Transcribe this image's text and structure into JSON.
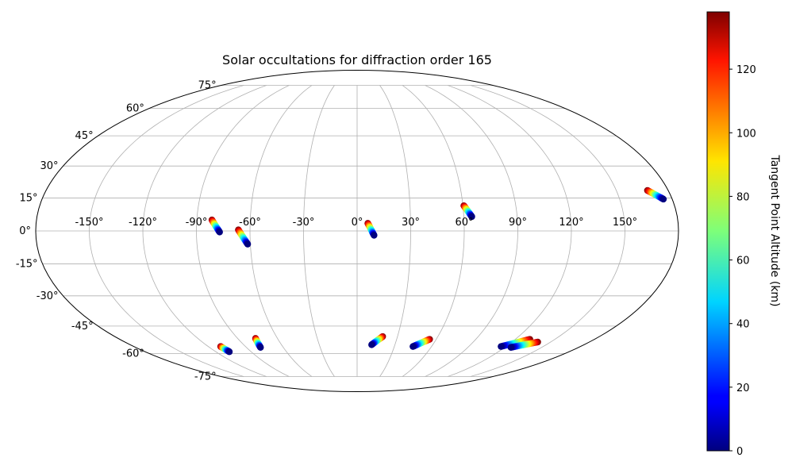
{
  "chart_data": {
    "type": "scatter",
    "projection": "mollweide",
    "title": "Solar occultations for diffraction order 165",
    "grid": true,
    "longitude_ticks": [
      -150,
      -120,
      -90,
      -60,
      -30,
      0,
      30,
      60,
      90,
      120,
      150
    ],
    "longitude_tick_labels": [
      "-150°",
      "-120°",
      "-90°",
      "-60°",
      "-30°",
      "0°",
      "30°",
      "60°",
      "90°",
      "120°",
      "150°"
    ],
    "latitude_ticks": [
      -75,
      -60,
      -45,
      -30,
      -15,
      0,
      15,
      30,
      45,
      60,
      75
    ],
    "latitude_tick_labels": [
      "-75°",
      "-60°",
      "-45°",
      "-30°",
      "-15°",
      "0°",
      "15°",
      "30°",
      "45°",
      "60°",
      "75°"
    ],
    "colormap": "jet",
    "colorbar": {
      "label": "Tangent Point Altitude (km)",
      "range": [
        0,
        138
      ],
      "ticks": [
        0,
        20,
        40,
        60,
        80,
        100,
        120
      ],
      "tick_labels": [
        "0",
        "20",
        "40",
        "60",
        "80",
        "100",
        "120"
      ]
    },
    "tracks": [
      {
        "start": {
          "lon": -81.5,
          "lat": 5.0,
          "alt": 138
        },
        "end": {
          "lon": -77.0,
          "lat": -0.5,
          "alt": 0
        }
      },
      {
        "start": {
          "lon": -66.5,
          "lat": 0.5,
          "alt": 138
        },
        "end": {
          "lon": -61.5,
          "lat": -6.0,
          "alt": 0
        }
      },
      {
        "start": {
          "lon": 6.0,
          "lat": 3.5,
          "alt": 138
        },
        "end": {
          "lon": 9.5,
          "lat": -2.0,
          "alt": 0
        }
      },
      {
        "start": {
          "lon": 60.5,
          "lat": 11.5,
          "alt": 138
        },
        "end": {
          "lon": 64.5,
          "lat": 6.5,
          "alt": 0
        }
      },
      {
        "start": {
          "lon": 168.0,
          "lat": 18.5,
          "alt": 138
        },
        "end": {
          "lon": 175.0,
          "lat": 14.5,
          "alt": 0
        }
      },
      {
        "start": {
          "lon": -110.0,
          "lat": -56.0,
          "alt": 138
        },
        "end": {
          "lon": -108.5,
          "lat": -59.0,
          "alt": 0
        }
      },
      {
        "start": {
          "lon": -76.5,
          "lat": -51.5,
          "alt": 138
        },
        "end": {
          "lon": -78.5,
          "lat": -56.5,
          "alt": 0
        }
      },
      {
        "start": {
          "lon": 19.0,
          "lat": -50.5,
          "alt": 138
        },
        "end": {
          "lon": 11.5,
          "lat": -55.0,
          "alt": 0
        }
      },
      {
        "start": {
          "lon": 55.0,
          "lat": -52.0,
          "alt": 138
        },
        "end": {
          "lon": 45.0,
          "lat": -56.0,
          "alt": 0
        }
      },
      {
        "start": {
          "lon": 131.0,
          "lat": -52.0,
          "alt": 138
        },
        "end": {
          "lon": 116.0,
          "lat": -56.0,
          "alt": 0
        }
      },
      {
        "start": {
          "lon": 140.0,
          "lat": -53.5,
          "alt": 138
        },
        "end": {
          "lon": 125.0,
          "lat": -56.5,
          "alt": 0
        }
      }
    ]
  }
}
